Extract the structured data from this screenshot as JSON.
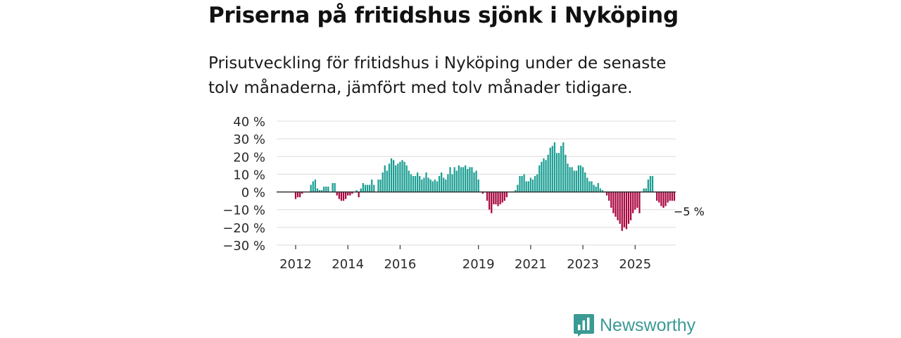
{
  "title": "Priserna på fritidshus sjönk i Nyköping",
  "subtitle": "Prisutveckling för fritidshus i Nyköping under de senaste tolv månaderna, jämfört med tolv månader tidigare.",
  "brand": {
    "name": "Newsworthy",
    "icon": "newsworthy-logo-icon",
    "color": "#3a9a94"
  },
  "chart_data": {
    "type": "bar",
    "title": "Priserna på fritidshus sjönk i Nyköping",
    "xlabel": "",
    "ylabel": "",
    "unit": "%",
    "ylim": [
      -30,
      40
    ],
    "yticks": [
      40,
      30,
      20,
      10,
      0,
      -10,
      -20,
      -30
    ],
    "ytick_labels": [
      "40 %",
      "30 %",
      "20 %",
      "10 %",
      "0 %",
      "−10 %",
      "−20 %",
      "−30 %"
    ],
    "xticks": [
      {
        "year": 2012,
        "label": "2012"
      },
      {
        "year": 2014,
        "label": "2014"
      },
      {
        "year": 2016,
        "label": "2016"
      },
      {
        "year": 2019,
        "label": "2019"
      },
      {
        "year": 2021,
        "label": "2021"
      },
      {
        "year": 2023,
        "label": "2023"
      },
      {
        "year": 2025,
        "label": "2025"
      }
    ],
    "grid": true,
    "colors": {
      "positive": "#1a9e93",
      "negative": "#a8053f",
      "zero_line": "#333333",
      "grid": "#dcdcdc"
    },
    "start": {
      "year": 2012,
      "month": 1
    },
    "frequency": "monthly",
    "values": [
      -4,
      -3,
      -3,
      -1,
      null,
      null,
      null,
      4,
      6,
      7,
      2,
      1,
      1,
      3,
      3,
      3,
      null,
      5,
      5,
      -2,
      -4,
      -5,
      -5,
      -4,
      -2,
      -2,
      -1,
      null,
      1,
      -3,
      2,
      5,
      4,
      4,
      4,
      7,
      4,
      null,
      7,
      7,
      11,
      15,
      12,
      16,
      19,
      18,
      15,
      16,
      17,
      18,
      17,
      15,
      12,
      10,
      9,
      9,
      11,
      9,
      7,
      8,
      11,
      8,
      7,
      6,
      7,
      6,
      9,
      11,
      8,
      7,
      10,
      14,
      10,
      14,
      12,
      15,
      14,
      14,
      15,
      13,
      14,
      14,
      11,
      12,
      7,
      null,
      -1,
      null,
      -5,
      -10,
      -12,
      -7,
      -7,
      -8,
      -7,
      -6,
      -5,
      -3,
      null,
      null,
      null,
      1,
      4,
      9,
      9,
      10,
      6,
      6,
      8,
      7,
      9,
      10,
      15,
      17,
      19,
      18,
      21,
      25,
      26,
      28,
      22,
      22,
      26,
      28,
      21,
      16,
      14,
      14,
      12,
      12,
      15,
      15,
      14,
      11,
      8,
      6,
      6,
      4,
      3,
      5,
      2,
      1,
      0,
      -2,
      -5,
      -9,
      -12,
      -14,
      -16,
      -18,
      -22,
      -20,
      -21,
      -18,
      -16,
      -12,
      -10,
      -9,
      -12,
      null,
      2,
      2,
      7,
      9,
      9,
      null,
      -5,
      -6,
      -8,
      -9,
      -8,
      -6,
      -5,
      -5,
      -5
    ],
    "annotations": [
      {
        "text": "−5 %",
        "target": "last"
      }
    ]
  }
}
